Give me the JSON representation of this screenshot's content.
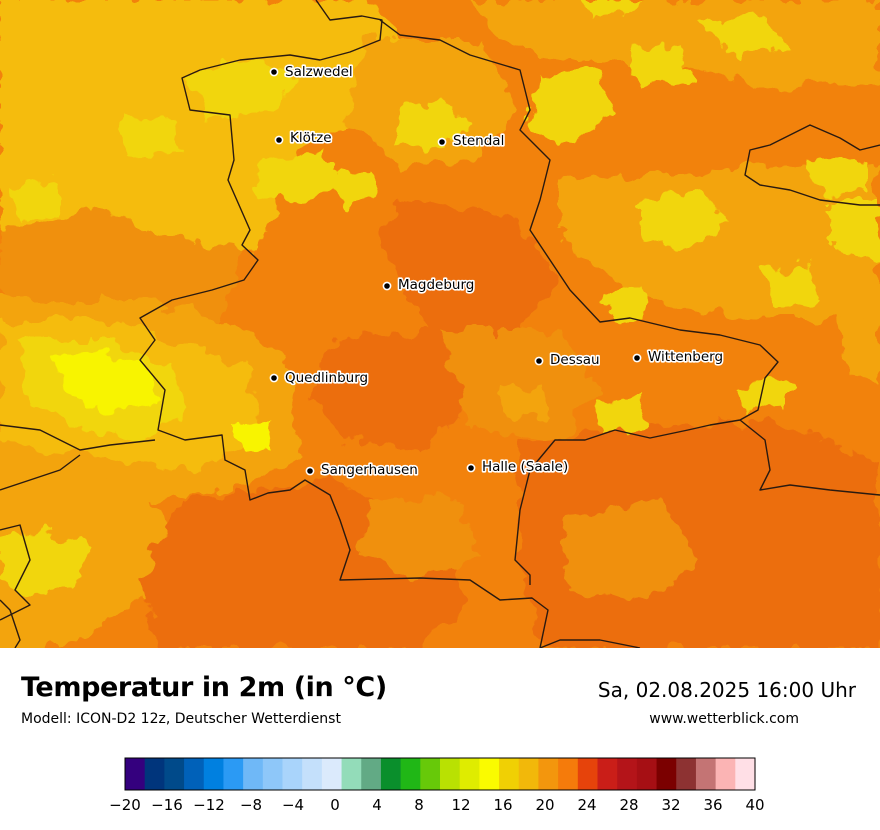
{
  "map": {
    "cities": [
      {
        "name": "Salzwedel"
      },
      {
        "name": "Klötze"
      },
      {
        "name": "Stendal"
      },
      {
        "name": "Magdeburg"
      },
      {
        "name": "Dessau"
      },
      {
        "name": "Wittenberg"
      },
      {
        "name": "Quedlinburg"
      },
      {
        "name": "Sangerhausen"
      },
      {
        "name": "Halle (Saale)"
      }
    ],
    "colors": {
      "base": "#f2820c",
      "warm_orange": "#f09010",
      "dark_orange": "#ec6e10",
      "amber": "#f3a40e",
      "yellow_orange": "#f5bc10",
      "yellow": "#f1d60c",
      "bright_yellow": "#f8f400",
      "border": "#2a1a10"
    }
  },
  "footer": {
    "title": "Temperatur in 2m (in °C)",
    "model": "Modell: ICON-D2 12z, Deutscher Wetterdienst",
    "datetime": "Sa, 02.08.2025 16:00 Uhr",
    "website": "www.wetterblick.com"
  },
  "legend": {
    "colors": [
      "#34007e",
      "#00357c",
      "#004a8a",
      "#0061b9",
      "#0080e0",
      "#2b9af4",
      "#6fb8f7",
      "#8ec7f9",
      "#a9d4fb",
      "#c4e0fb",
      "#dbeafc",
      "#93dcb9",
      "#62aa85",
      "#0a8f2c",
      "#20b716",
      "#67c909",
      "#b9e102",
      "#dfec00",
      "#fafb00",
      "#f0d004",
      "#f2b80a",
      "#f3960d",
      "#f57b0b",
      "#e6430b",
      "#ca1e18",
      "#b41419",
      "#a60f14",
      "#7b0000",
      "#8d3232",
      "#c47474",
      "#fbb4b4",
      "#ffdfe6"
    ],
    "tick_labels": [
      "−20",
      "−16",
      "−12",
      "−8",
      "−4",
      "0",
      "4",
      "8",
      "12",
      "16",
      "20",
      "24",
      "28",
      "32",
      "36",
      "40"
    ]
  }
}
